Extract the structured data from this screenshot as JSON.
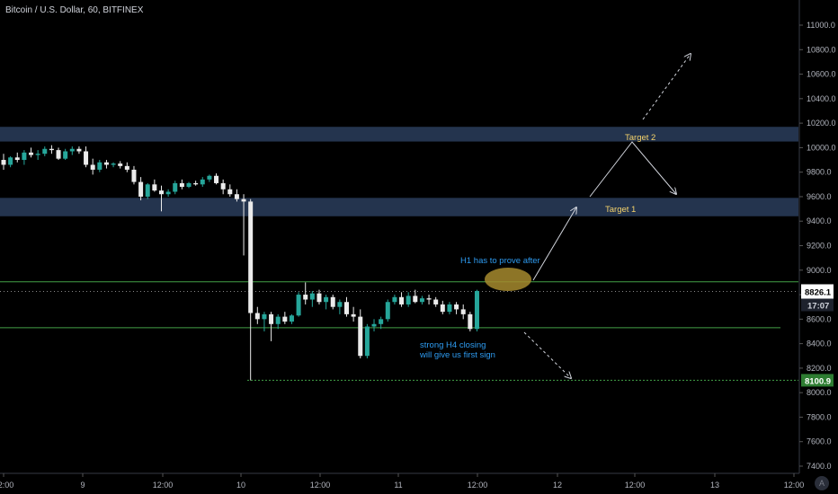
{
  "header": {
    "title": "Bitcoin / U.S. Dollar, 60, BITFINEX"
  },
  "colors": {
    "up": "#26a69a",
    "down": "#ebebeb",
    "zone": "#2a3d5c",
    "level": "#43a047",
    "annotation_blue": "#2e9cf2",
    "annotation_yellow": "#f4d26b",
    "oval": "#a68a2e",
    "price_badge": "#ffffff",
    "low_badge": "#2e7d32"
  },
  "chart_data": {
    "type": "candlestick",
    "title": "Bitcoin / U.S. Dollar, 60, BITFINEX",
    "y_axis": {
      "ylim": [
        7340,
        11170
      ],
      "ticks": [
        7400,
        7600,
        7800,
        8000,
        8200,
        8400,
        8600,
        8800,
        9000,
        9200,
        9400,
        9600,
        9800,
        10000,
        10200,
        10400,
        10600,
        10800,
        11000
      ],
      "tick_labels": [
        "7400.0",
        "7600.0",
        "7800.0",
        "8000.0",
        "8200.0",
        "8400.0",
        "8600.0",
        "8800.0",
        "9000.0",
        "9200.0",
        "9400.0",
        "9600.0",
        "9800.0",
        "10000.0",
        "10200.0",
        "10400.0",
        "10600.0",
        "10800.0",
        "11000.0"
      ]
    },
    "x_axis": {
      "tick_labels": [
        "12:00",
        "9",
        "12:00",
        "10",
        "12:00",
        "11",
        "12:00",
        "12",
        "12:00",
        "13",
        "12:00"
      ]
    },
    "zones": [
      {
        "from": 10050,
        "to": 10170
      },
      {
        "from": 9440,
        "to": 9590
      }
    ],
    "levels": [
      8905,
      8530,
      8100.9
    ],
    "current_price": {
      "value": 8826.1,
      "label": "8826.1",
      "countdown": "17:07"
    },
    "low_label": "8100.9",
    "candles_ohlc": [
      [
        9900,
        9950,
        9820,
        9860
      ],
      [
        9860,
        9930,
        9840,
        9920
      ],
      [
        9920,
        9960,
        9880,
        9900
      ],
      [
        9900,
        9980,
        9860,
        9960
      ],
      [
        9960,
        10000,
        9920,
        9940
      ],
      [
        9940,
        9980,
        9900,
        9950
      ],
      [
        9950,
        10010,
        9930,
        9990
      ],
      [
        9990,
        10020,
        9950,
        9980
      ],
      [
        9980,
        10000,
        9900,
        9910
      ],
      [
        9910,
        9990,
        9900,
        9970
      ],
      [
        9970,
        10010,
        9940,
        9990
      ],
      [
        9990,
        10010,
        9950,
        9970
      ],
      [
        9970,
        10010,
        9840,
        9860
      ],
      [
        9860,
        9910,
        9780,
        9820
      ],
      [
        9820,
        9900,
        9800,
        9880
      ],
      [
        9880,
        9900,
        9830,
        9860
      ],
      [
        9860,
        9880,
        9840,
        9870
      ],
      [
        9870,
        9890,
        9830,
        9850
      ],
      [
        9850,
        9880,
        9800,
        9820
      ],
      [
        9820,
        9850,
        9700,
        9720
      ],
      [
        9720,
        9760,
        9570,
        9600
      ],
      [
        9600,
        9710,
        9580,
        9700
      ],
      [
        9700,
        9740,
        9640,
        9650
      ],
      [
        9650,
        9690,
        9480,
        9620
      ],
      [
        9620,
        9660,
        9600,
        9640
      ],
      [
        9640,
        9730,
        9620,
        9710
      ],
      [
        9710,
        9740,
        9660,
        9680
      ],
      [
        9680,
        9720,
        9670,
        9710
      ],
      [
        9710,
        9730,
        9690,
        9700
      ],
      [
        9700,
        9760,
        9680,
        9740
      ],
      [
        9740,
        9780,
        9720,
        9770
      ],
      [
        9770,
        9790,
        9700,
        9710
      ],
      [
        9710,
        9740,
        9620,
        9660
      ],
      [
        9660,
        9700,
        9600,
        9620
      ],
      [
        9620,
        9660,
        9560,
        9580
      ],
      [
        9580,
        9620,
        9120,
        9560
      ],
      [
        9560,
        9580,
        8100,
        8650
      ],
      [
        8650,
        8700,
        8560,
        8600
      ],
      [
        8600,
        8660,
        8500,
        8640
      ],
      [
        8640,
        8660,
        8420,
        8560
      ],
      [
        8560,
        8640,
        8520,
        8620
      ],
      [
        8620,
        8660,
        8560,
        8580
      ],
      [
        8580,
        8640,
        8560,
        8630
      ],
      [
        8630,
        8820,
        8620,
        8800
      ],
      [
        8800,
        8900,
        8720,
        8760
      ],
      [
        8760,
        8830,
        8700,
        8810
      ],
      [
        8810,
        8840,
        8720,
        8740
      ],
      [
        8740,
        8800,
        8680,
        8780
      ],
      [
        8780,
        8800,
        8680,
        8700
      ],
      [
        8700,
        8760,
        8640,
        8740
      ],
      [
        8740,
        8780,
        8620,
        8640
      ],
      [
        8640,
        8700,
        8580,
        8620
      ],
      [
        8620,
        8680,
        8280,
        8300
      ],
      [
        8300,
        8560,
        8280,
        8540
      ],
      [
        8540,
        8600,
        8500,
        8560
      ],
      [
        8560,
        8620,
        8520,
        8600
      ],
      [
        8600,
        8760,
        8580,
        8740
      ],
      [
        8740,
        8800,
        8720,
        8780
      ],
      [
        8780,
        8820,
        8700,
        8720
      ],
      [
        8720,
        8820,
        8700,
        8790
      ],
      [
        8790,
        8840,
        8730,
        8740
      ],
      [
        8740,
        8790,
        8720,
        8770
      ],
      [
        8770,
        8800,
        8720,
        8760
      ],
      [
        8760,
        8780,
        8700,
        8720
      ],
      [
        8720,
        8750,
        8640,
        8660
      ],
      [
        8660,
        8740,
        8640,
        8720
      ],
      [
        8720,
        8740,
        8640,
        8680
      ],
      [
        8680,
        8720,
        8600,
        8640
      ],
      [
        8640,
        8660,
        8500,
        8520
      ],
      [
        8520,
        8840,
        8500,
        8830
      ]
    ],
    "annotations": [
      {
        "text": "H1 has to prove after",
        "color": "blue"
      },
      {
        "text": "Target 2",
        "color": "yellow"
      },
      {
        "text": "Target 1",
        "color": "yellow"
      },
      {
        "text": "strong H4 closing",
        "color": "blue"
      },
      {
        "text": "will give us first sign",
        "color": "blue"
      }
    ]
  },
  "logo": {
    "text": "A"
  }
}
